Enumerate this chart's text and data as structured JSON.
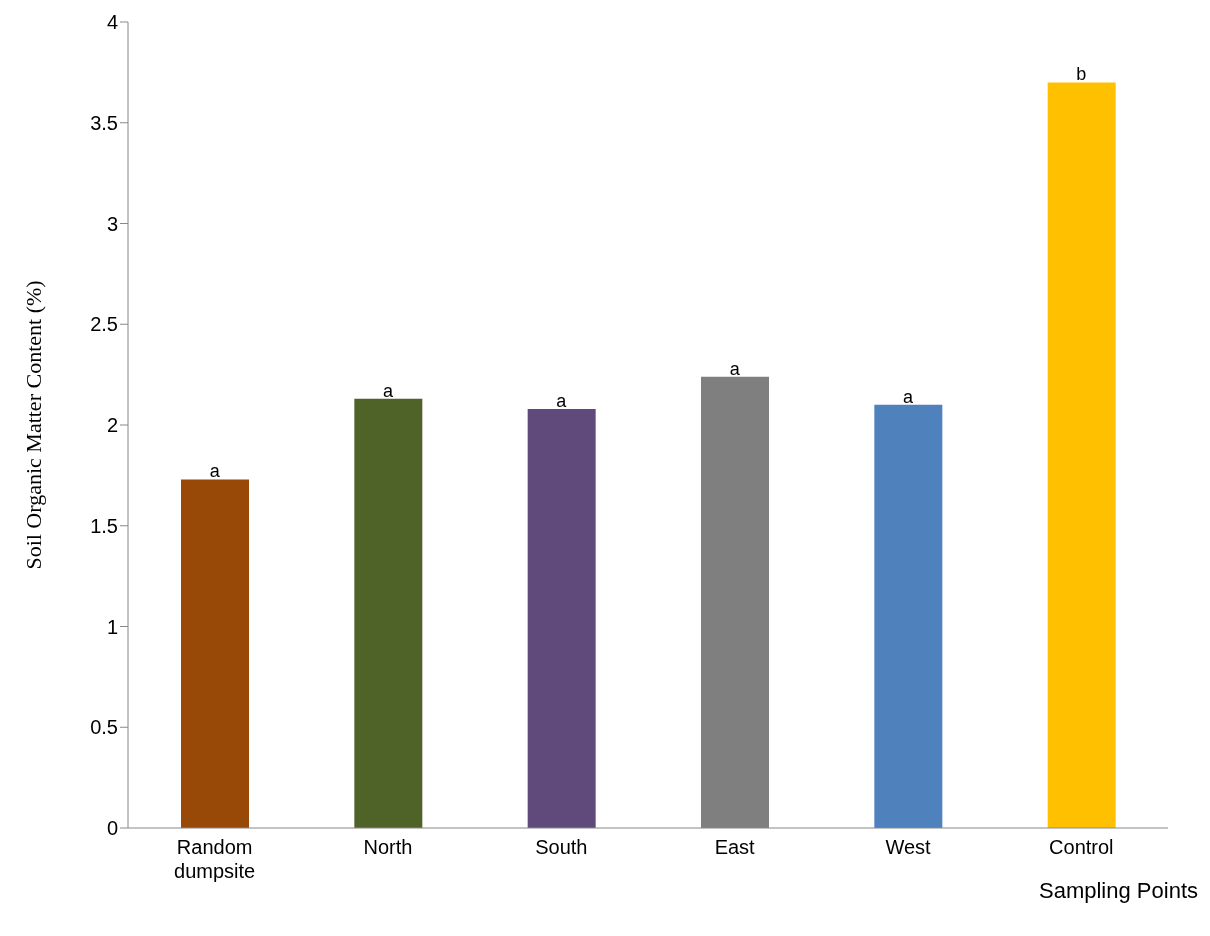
{
  "chart_data": {
    "type": "bar",
    "ylabel": "Soil Organic Matter Content (%)",
    "xlabel": "Sampling Points",
    "categories": [
      "Random dumpsite",
      "North",
      "South",
      "East",
      "West",
      "Control"
    ],
    "values": [
      1.73,
      2.13,
      2.08,
      2.24,
      2.1,
      3.7
    ],
    "colors": [
      "#984807",
      "#4f6228",
      "#604a7b",
      "#7f7f7f",
      "#4f81bd",
      "#ffc000"
    ],
    "ylim": [
      0,
      4
    ],
    "yticks": [
      0,
      0.5,
      1,
      1.5,
      2,
      2.5,
      3,
      3.5,
      4
    ],
    "grid": false,
    "legend": false,
    "annotations": [
      {
        "text": "a",
        "x": "Random dumpsite",
        "y": 1.73
      },
      {
        "text": "a",
        "x": "North",
        "y": 2.13
      },
      {
        "text": "a",
        "x": "South",
        "y": 2.08
      },
      {
        "text": "a",
        "x": "East",
        "y": 2.24
      },
      {
        "text": "a",
        "x": "West",
        "y": 2.1
      },
      {
        "text": "b",
        "x": "Control",
        "y": 3.7
      }
    ]
  }
}
